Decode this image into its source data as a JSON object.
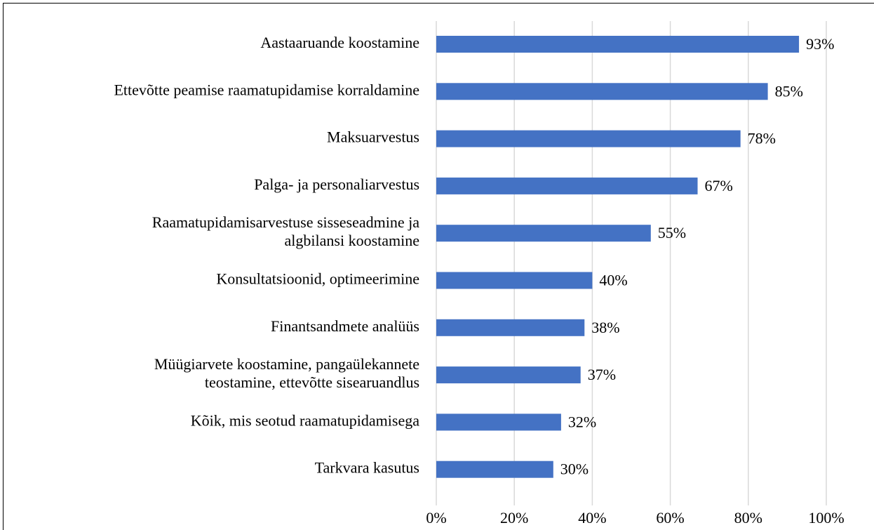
{
  "chart_data": {
    "type": "barh",
    "categories": [
      "Aastaaruande koostamine",
      "Ettevõtte peamise raamatupidamise korraldamine",
      "Maksuarvestus",
      "Palga- ja personaliarvestus",
      "Raamatupidamisarvestuse sisseseadmine ja\nalgbilansi koostamine",
      "Konsultatsioonid, optimeerimine",
      "Finantsandmete analüüs",
      "Müügiarvete koostamine, pangaülekannete\nteostamine, ettevõtte sisearuandlus",
      "Kõik, mis seotud raamatupidamisega",
      "Tarkvara kasutus"
    ],
    "values": [
      93,
      85,
      78,
      67,
      55,
      40,
      38,
      37,
      32,
      30
    ],
    "value_labels": [
      "93%",
      "85%",
      "78%",
      "67%",
      "55%",
      "40%",
      "38%",
      "37%",
      "32%",
      "30%"
    ],
    "color": "#4472c4",
    "xlim": [
      0,
      100
    ],
    "xticks": [
      {
        "value": 0,
        "label": "0%"
      },
      {
        "value": 20,
        "label": "20%"
      },
      {
        "value": 40,
        "label": "40%"
      },
      {
        "value": 60,
        "label": "60%"
      },
      {
        "value": 80,
        "label": "80%"
      },
      {
        "value": 100,
        "label": "100%"
      }
    ],
    "grid": true
  }
}
